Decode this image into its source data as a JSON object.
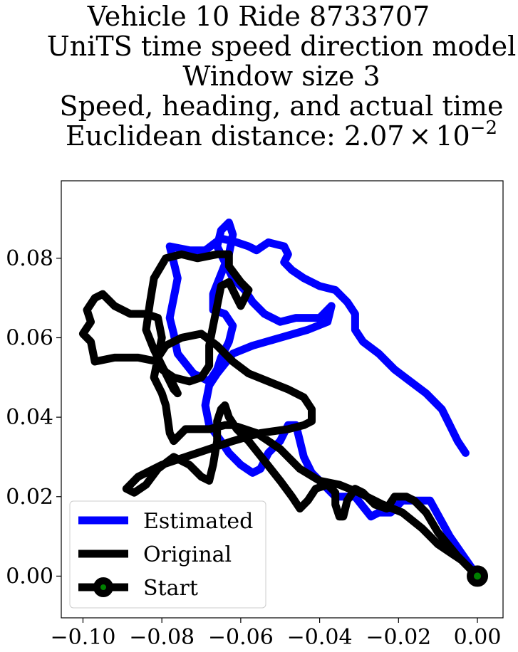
{
  "chart_data": {
    "type": "line",
    "title_lines": [
      "Vehicle 10 Ride 8733707",
      "UniTS time speed direction model",
      "Window size 3",
      "Speed, heading, and actual time"
    ],
    "title_distance_prefix": "Euclidean distance: 2.07",
    "title_distance_times": "×",
    "title_distance_base": "10",
    "title_distance_exponent": "−2",
    "xlabel": "",
    "ylabel": "",
    "xlim": [
      -0.1055,
      0.0065
    ],
    "ylim": [
      -0.0105,
      0.0995
    ],
    "x_ticks": [
      {
        "value": -0.1,
        "label": "−0.10"
      },
      {
        "value": -0.08,
        "label": "−0.08"
      },
      {
        "value": -0.06,
        "label": "−0.06"
      },
      {
        "value": -0.04,
        "label": "−0.04"
      },
      {
        "value": -0.02,
        "label": "−0.02"
      },
      {
        "value": 0.0,
        "label": "0.00"
      }
    ],
    "y_ticks": [
      {
        "value": 0.0,
        "label": "0.00"
      },
      {
        "value": 0.02,
        "label": "0.02"
      },
      {
        "value": 0.04,
        "label": "0.04"
      },
      {
        "value": 0.06,
        "label": "0.06"
      },
      {
        "value": 0.08,
        "label": "0.08"
      }
    ],
    "grid": false,
    "legend_position": "lower-left",
    "series": [
      {
        "name": "Estimated",
        "color": "#0000ff",
        "points": [
          [
            0.0,
            0.0
          ],
          [
            -0.007,
            0.01
          ],
          [
            -0.012,
            0.019
          ],
          [
            -0.019,
            0.019
          ],
          [
            -0.022,
            0.016
          ],
          [
            -0.025,
            0.016
          ],
          [
            -0.027,
            0.015
          ],
          [
            -0.031,
            0.02
          ],
          [
            -0.036,
            0.02
          ],
          [
            -0.039,
            0.023
          ],
          [
            -0.042,
            0.026
          ],
          [
            -0.044,
            0.03
          ],
          [
            -0.046,
            0.038
          ],
          [
            -0.048,
            0.038
          ],
          [
            -0.05,
            0.034
          ],
          [
            -0.053,
            0.031
          ],
          [
            -0.055,
            0.027
          ],
          [
            -0.057,
            0.026
          ],
          [
            -0.06,
            0.028
          ],
          [
            -0.063,
            0.031
          ],
          [
            -0.065,
            0.034
          ],
          [
            -0.068,
            0.038
          ],
          [
            -0.069,
            0.043
          ],
          [
            -0.068,
            0.048
          ],
          [
            -0.066,
            0.051
          ],
          [
            -0.062,
            0.056
          ],
          [
            -0.057,
            0.058
          ],
          [
            -0.05,
            0.06
          ],
          [
            -0.043,
            0.062
          ],
          [
            -0.038,
            0.064
          ],
          [
            -0.037,
            0.068
          ],
          [
            -0.04,
            0.065
          ],
          [
            -0.046,
            0.065
          ],
          [
            -0.05,
            0.064
          ],
          [
            -0.054,
            0.066
          ],
          [
            -0.057,
            0.069
          ],
          [
            -0.059,
            0.072
          ],
          [
            -0.062,
            0.075
          ],
          [
            -0.064,
            0.079
          ],
          [
            -0.066,
            0.083
          ],
          [
            -0.065,
            0.087
          ],
          [
            -0.063,
            0.089
          ],
          [
            -0.062,
            0.086
          ],
          [
            -0.063,
            0.081
          ],
          [
            -0.065,
            0.076
          ],
          [
            -0.067,
            0.071
          ],
          [
            -0.067,
            0.067
          ],
          [
            -0.064,
            0.066
          ],
          [
            -0.062,
            0.063
          ],
          [
            -0.063,
            0.059
          ],
          [
            -0.065,
            0.055
          ],
          [
            -0.066,
            0.052
          ],
          [
            -0.068,
            0.049
          ],
          [
            -0.072,
            0.051
          ],
          [
            -0.076,
            0.056
          ],
          [
            -0.077,
            0.061
          ],
          [
            -0.078,
            0.065
          ],
          [
            -0.077,
            0.07
          ],
          [
            -0.076,
            0.075
          ],
          [
            -0.077,
            0.079
          ],
          [
            -0.078,
            0.083
          ],
          [
            -0.073,
            0.082
          ],
          [
            -0.069,
            0.082
          ],
          [
            -0.065,
            0.085
          ],
          [
            -0.061,
            0.084
          ],
          [
            -0.058,
            0.083
          ],
          [
            -0.056,
            0.082
          ],
          [
            -0.053,
            0.084
          ],
          [
            -0.049,
            0.083
          ],
          [
            -0.048,
            0.081
          ],
          [
            -0.049,
            0.079
          ],
          [
            -0.047,
            0.077
          ],
          [
            -0.044,
            0.075
          ],
          [
            -0.04,
            0.073
          ],
          [
            -0.036,
            0.072
          ],
          [
            -0.033,
            0.069
          ],
          [
            -0.031,
            0.066
          ],
          [
            -0.031,
            0.062
          ],
          [
            -0.029,
            0.059
          ],
          [
            -0.025,
            0.056
          ],
          [
            -0.021,
            0.052
          ],
          [
            -0.017,
            0.049
          ],
          [
            -0.013,
            0.046
          ],
          [
            -0.009,
            0.042
          ],
          [
            -0.007,
            0.038
          ],
          [
            -0.005,
            0.034
          ],
          [
            -0.003,
            0.031
          ]
        ]
      },
      {
        "name": "Original",
        "color": "#000000",
        "points": [
          [
            0.0,
            0.0
          ],
          [
            -0.005,
            0.005
          ],
          [
            -0.01,
            0.011
          ],
          [
            -0.013,
            0.016
          ],
          [
            -0.016,
            0.019
          ],
          [
            -0.018,
            0.02
          ],
          [
            -0.021,
            0.02
          ],
          [
            -0.023,
            0.017
          ],
          [
            -0.026,
            0.018
          ],
          [
            -0.029,
            0.021
          ],
          [
            -0.031,
            0.022
          ],
          [
            -0.033,
            0.019
          ],
          [
            -0.034,
            0.015
          ],
          [
            -0.035,
            0.015
          ],
          [
            -0.036,
            0.018
          ],
          [
            -0.036,
            0.021
          ],
          [
            -0.038,
            0.023
          ],
          [
            -0.041,
            0.022
          ],
          [
            -0.043,
            0.019
          ],
          [
            -0.045,
            0.017
          ],
          [
            -0.047,
            0.02
          ],
          [
            -0.05,
            0.024
          ],
          [
            -0.054,
            0.029
          ],
          [
            -0.058,
            0.034
          ],
          [
            -0.061,
            0.037
          ],
          [
            -0.063,
            0.04
          ],
          [
            -0.064,
            0.043
          ],
          [
            -0.065,
            0.042
          ],
          [
            -0.066,
            0.039
          ],
          [
            -0.066,
            0.034
          ],
          [
            -0.067,
            0.028
          ],
          [
            -0.068,
            0.024
          ],
          [
            -0.07,
            0.025
          ],
          [
            -0.073,
            0.028
          ],
          [
            -0.077,
            0.03
          ],
          [
            -0.081,
            0.027
          ],
          [
            -0.084,
            0.023
          ],
          [
            -0.087,
            0.021
          ],
          [
            -0.089,
            0.022
          ],
          [
            -0.086,
            0.025
          ],
          [
            -0.08,
            0.028
          ],
          [
            -0.074,
            0.03
          ],
          [
            -0.068,
            0.032
          ],
          [
            -0.062,
            0.034
          ],
          [
            -0.055,
            0.036
          ],
          [
            -0.048,
            0.037
          ],
          [
            -0.044,
            0.038
          ],
          [
            -0.042,
            0.039
          ],
          [
            -0.042,
            0.042
          ],
          [
            -0.044,
            0.045
          ],
          [
            -0.048,
            0.047
          ],
          [
            -0.053,
            0.049
          ],
          [
            -0.058,
            0.051
          ],
          [
            -0.062,
            0.054
          ],
          [
            -0.066,
            0.058
          ],
          [
            -0.07,
            0.061
          ],
          [
            -0.075,
            0.06
          ],
          [
            -0.079,
            0.058
          ],
          [
            -0.081,
            0.055
          ],
          [
            -0.08,
            0.052
          ],
          [
            -0.077,
            0.05
          ],
          [
            -0.073,
            0.049
          ],
          [
            -0.07,
            0.05
          ],
          [
            -0.068,
            0.053
          ],
          [
            -0.068,
            0.058
          ],
          [
            -0.067,
            0.063
          ],
          [
            -0.066,
            0.068
          ],
          [
            -0.065,
            0.073
          ],
          [
            -0.063,
            0.074
          ],
          [
            -0.061,
            0.07
          ],
          [
            -0.06,
            0.068
          ],
          [
            -0.058,
            0.072
          ],
          [
            -0.06,
            0.074
          ],
          [
            -0.063,
            0.078
          ],
          [
            -0.063,
            0.081
          ],
          [
            -0.066,
            0.081
          ],
          [
            -0.071,
            0.08
          ],
          [
            -0.075,
            0.081
          ],
          [
            -0.079,
            0.08
          ],
          [
            -0.082,
            0.075
          ],
          [
            -0.083,
            0.069
          ],
          [
            -0.084,
            0.062
          ],
          [
            -0.082,
            0.057
          ],
          [
            -0.079,
            0.051
          ],
          [
            -0.077,
            0.047
          ],
          [
            -0.076,
            0.046
          ],
          [
            -0.078,
            0.05
          ],
          [
            -0.081,
            0.054
          ],
          [
            -0.086,
            0.055
          ],
          [
            -0.092,
            0.055
          ],
          [
            -0.097,
            0.054
          ],
          [
            -0.098,
            0.059
          ],
          [
            -0.1,
            0.061
          ],
          [
            -0.098,
            0.064
          ],
          [
            -0.099,
            0.067
          ],
          [
            -0.097,
            0.07
          ],
          [
            -0.095,
            0.071
          ],
          [
            -0.092,
            0.068
          ],
          [
            -0.088,
            0.066
          ],
          [
            -0.084,
            0.066
          ],
          [
            -0.081,
            0.065
          ],
          [
            -0.08,
            0.06
          ],
          [
            -0.081,
            0.055
          ],
          [
            -0.082,
            0.05
          ],
          [
            -0.08,
            0.046
          ],
          [
            -0.079,
            0.043
          ],
          [
            -0.078,
            0.036
          ],
          [
            -0.077,
            0.034
          ],
          [
            -0.074,
            0.037
          ],
          [
            -0.068,
            0.037
          ],
          [
            -0.064,
            0.038
          ],
          [
            -0.062,
            0.038
          ],
          [
            -0.056,
            0.036
          ],
          [
            -0.05,
            0.032
          ],
          [
            -0.045,
            0.027
          ],
          [
            -0.04,
            0.024
          ],
          [
            -0.035,
            0.023
          ],
          [
            -0.03,
            0.021
          ],
          [
            -0.024,
            0.018
          ],
          [
            -0.019,
            0.016
          ],
          [
            -0.014,
            0.012
          ],
          [
            -0.01,
            0.008
          ],
          [
            -0.007,
            0.006
          ],
          [
            -0.004,
            0.004
          ],
          [
            -0.002,
            0.002
          ],
          [
            0.0,
            0.0
          ]
        ]
      }
    ],
    "start_point": {
      "name": "Start",
      "x": 0.0,
      "y": 0.0,
      "marker_edge_color": "#000000",
      "marker_face_color": "#008000"
    },
    "legend": [
      {
        "label": "Estimated",
        "color": "#0000ff",
        "kind": "line"
      },
      {
        "label": "Original",
        "color": "#000000",
        "kind": "line"
      },
      {
        "label": "Start",
        "color": "#000000",
        "kind": "line-marker",
        "marker_face_color": "#008000"
      }
    ]
  }
}
